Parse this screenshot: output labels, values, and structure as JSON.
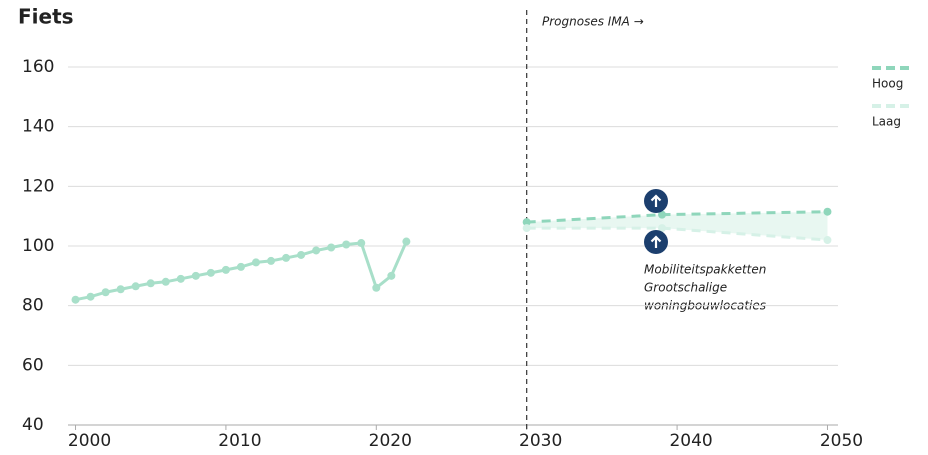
{
  "chart_data": {
    "type": "line",
    "title": "Fiets",
    "annotation": "Prognoses IMA →",
    "notes": [
      "Mobiliteitspakketten",
      "Grootschalige",
      "woningbouwlocaties"
    ],
    "xlim": [
      1999.5,
      2050.7
    ],
    "xticks": [
      2000,
      2010,
      2020,
      2030,
      2040,
      2050
    ],
    "ylim": [
      40,
      160
    ],
    "yticks": [
      40,
      60,
      80,
      100,
      120,
      140,
      160
    ],
    "grid": true,
    "legend": "right",
    "series": [
      {
        "color": "#a8dfc9",
        "dashed": false,
        "x": [
          2000,
          2001,
          2002,
          2003,
          2004,
          2005,
          2006,
          2007,
          2008,
          2009,
          2010,
          2011,
          2012,
          2013,
          2014,
          2015,
          2016,
          2017,
          2018,
          2019,
          2020,
          2021,
          2022
        ],
        "values": [
          82,
          83,
          84.5,
          85.5,
          86.5,
          87.5,
          88,
          89,
          90,
          91,
          92,
          93,
          94.5,
          95,
          96,
          97,
          98.5,
          99.5,
          100.5,
          101,
          86,
          90,
          101.5
        ]
      },
      {
        "name": "Hoog",
        "color": "#8fd6bb",
        "dashed": true,
        "x": [
          2030,
          2039,
          2050
        ],
        "values": [
          108,
          110.5,
          111.5
        ]
      },
      {
        "name": "Laag",
        "color": "#d6f1e7",
        "dashed": true,
        "x": [
          2030,
          2039,
          2050
        ],
        "values": [
          106,
          106,
          102
        ]
      }
    ]
  }
}
